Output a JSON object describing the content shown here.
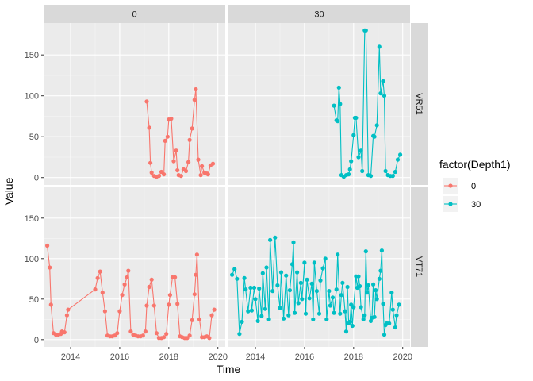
{
  "chart_data": {
    "type": "line",
    "facet_columns": [
      "0",
      "30"
    ],
    "facet_rows": [
      "VR51",
      "VT71"
    ],
    "xlabel": "Time",
    "ylabel": "Value",
    "x_ticks": [
      2014,
      2016,
      2018,
      2020
    ],
    "y_ticks": [
      0,
      50,
      100,
      150
    ],
    "xlim": [
      2012.9,
      2020.3
    ],
    "ylim": [
      -9,
      189
    ],
    "grid": true,
    "legend": {
      "title": "factor(Depth1)",
      "position": "right",
      "entries": [
        {
          "label": "0",
          "color": "#F8766D"
        },
        {
          "label": "30",
          "color": "#00BFC4"
        }
      ]
    },
    "panels": [
      {
        "row": "VR51",
        "col": "0",
        "series": "0",
        "color": "#F8766D",
        "points": [
          [
            2017.1,
            93
          ],
          [
            2017.2,
            61
          ],
          [
            2017.25,
            18
          ],
          [
            2017.3,
            6
          ],
          [
            2017.4,
            2
          ],
          [
            2017.5,
            1
          ],
          [
            2017.6,
            2
          ],
          [
            2017.7,
            7
          ],
          [
            2017.8,
            4
          ],
          [
            2017.85,
            45
          ],
          [
            2017.95,
            50
          ],
          [
            2018.0,
            71
          ],
          [
            2018.1,
            72
          ],
          [
            2018.2,
            20
          ],
          [
            2018.3,
            33
          ],
          [
            2018.35,
            9
          ],
          [
            2018.4,
            3
          ],
          [
            2018.5,
            2
          ],
          [
            2018.6,
            10
          ],
          [
            2018.7,
            8
          ],
          [
            2018.8,
            19
          ],
          [
            2018.85,
            46
          ],
          [
            2018.95,
            60
          ],
          [
            2019.05,
            95
          ],
          [
            2019.1,
            108
          ],
          [
            2019.2,
            22
          ],
          [
            2019.3,
            3
          ],
          [
            2019.35,
            14
          ],
          [
            2019.45,
            6
          ],
          [
            2019.55,
            5
          ],
          [
            2019.6,
            4
          ],
          [
            2019.7,
            15
          ],
          [
            2019.8,
            17
          ]
        ]
      },
      {
        "row": "VR51",
        "col": "30",
        "series": "30",
        "color": "#00BFC4",
        "points": [
          [
            2017.2,
            88
          ],
          [
            2017.3,
            70
          ],
          [
            2017.35,
            69
          ],
          [
            2017.4,
            110
          ],
          [
            2017.45,
            90
          ],
          [
            2017.5,
            3
          ],
          [
            2017.6,
            1
          ],
          [
            2017.7,
            3
          ],
          [
            2017.8,
            4
          ],
          [
            2017.85,
            10
          ],
          [
            2017.9,
            20
          ],
          [
            2018.0,
            52
          ],
          [
            2018.05,
            73
          ],
          [
            2018.1,
            73
          ],
          [
            2018.2,
            25
          ],
          [
            2018.3,
            33
          ],
          [
            2018.35,
            8
          ],
          [
            2018.45,
            180
          ],
          [
            2018.5,
            180
          ],
          [
            2018.6,
            3
          ],
          [
            2018.7,
            2
          ],
          [
            2018.8,
            51
          ],
          [
            2018.85,
            50
          ],
          [
            2018.95,
            64
          ],
          [
            2019.05,
            160
          ],
          [
            2019.1,
            103
          ],
          [
            2019.2,
            118
          ],
          [
            2019.25,
            100
          ],
          [
            2019.3,
            8
          ],
          [
            2019.4,
            3
          ],
          [
            2019.5,
            2
          ],
          [
            2019.6,
            2
          ],
          [
            2019.7,
            7
          ],
          [
            2019.8,
            22
          ],
          [
            2019.9,
            28
          ]
        ]
      },
      {
        "row": "VT71",
        "col": "0",
        "series": "0",
        "color": "#F8766D",
        "points": [
          [
            2013.05,
            116
          ],
          [
            2013.15,
            89
          ],
          [
            2013.2,
            43
          ],
          [
            2013.3,
            8
          ],
          [
            2013.4,
            6
          ],
          [
            2013.5,
            6
          ],
          [
            2013.6,
            7
          ],
          [
            2013.65,
            10
          ],
          [
            2013.75,
            9
          ],
          [
            2013.85,
            30
          ],
          [
            2013.9,
            37
          ],
          [
            2015.0,
            62
          ],
          [
            2015.1,
            76
          ],
          [
            2015.2,
            84
          ],
          [
            2015.3,
            58
          ],
          [
            2015.4,
            35
          ],
          [
            2015.5,
            5
          ],
          [
            2015.6,
            4
          ],
          [
            2015.7,
            4
          ],
          [
            2015.8,
            5
          ],
          [
            2015.9,
            8
          ],
          [
            2016.0,
            35
          ],
          [
            2016.1,
            55
          ],
          [
            2016.2,
            68
          ],
          [
            2016.3,
            77
          ],
          [
            2016.35,
            85
          ],
          [
            2016.45,
            10
          ],
          [
            2016.55,
            6
          ],
          [
            2016.65,
            5
          ],
          [
            2016.75,
            4
          ],
          [
            2016.85,
            4
          ],
          [
            2016.95,
            5
          ],
          [
            2017.05,
            10
          ],
          [
            2017.1,
            42
          ],
          [
            2017.2,
            65
          ],
          [
            2017.3,
            74
          ],
          [
            2017.4,
            42
          ],
          [
            2017.5,
            8
          ],
          [
            2017.6,
            2
          ],
          [
            2017.7,
            2
          ],
          [
            2017.8,
            3
          ],
          [
            2017.9,
            7
          ],
          [
            2018.0,
            43
          ],
          [
            2018.05,
            55
          ],
          [
            2018.15,
            77
          ],
          [
            2018.25,
            77
          ],
          [
            2018.35,
            44
          ],
          [
            2018.45,
            4
          ],
          [
            2018.55,
            3
          ],
          [
            2018.65,
            2
          ],
          [
            2018.75,
            2
          ],
          [
            2018.85,
            5
          ],
          [
            2018.95,
            24
          ],
          [
            2019.05,
            56
          ],
          [
            2019.1,
            80
          ],
          [
            2019.15,
            105
          ],
          [
            2019.25,
            25
          ],
          [
            2019.35,
            3
          ],
          [
            2019.45,
            3
          ],
          [
            2019.55,
            4
          ],
          [
            2019.65,
            2
          ],
          [
            2019.75,
            30
          ],
          [
            2019.85,
            37
          ]
        ]
      },
      {
        "row": "VT71",
        "col": "30",
        "series": "30",
        "color": "#00BFC4",
        "points": [
          [
            2013.05,
            80
          ],
          [
            2013.15,
            87
          ],
          [
            2013.25,
            75
          ],
          [
            2013.35,
            7
          ],
          [
            2013.45,
            22
          ],
          [
            2013.55,
            76
          ],
          [
            2013.6,
            62
          ],
          [
            2013.7,
            35
          ],
          [
            2013.8,
            64
          ],
          [
            2013.85,
            36
          ],
          [
            2013.95,
            64
          ],
          [
            2014.0,
            50
          ],
          [
            2014.1,
            23
          ],
          [
            2014.15,
            63
          ],
          [
            2014.25,
            29
          ],
          [
            2014.3,
            82
          ],
          [
            2014.4,
            38
          ],
          [
            2014.45,
            89
          ],
          [
            2014.55,
            25
          ],
          [
            2014.6,
            123
          ],
          [
            2014.7,
            60
          ],
          [
            2014.8,
            126
          ],
          [
            2014.9,
            67
          ],
          [
            2015.0,
            39
          ],
          [
            2015.05,
            83
          ],
          [
            2015.15,
            26
          ],
          [
            2015.25,
            79
          ],
          [
            2015.35,
            30
          ],
          [
            2015.4,
            61
          ],
          [
            2015.5,
            93
          ],
          [
            2015.55,
            120
          ],
          [
            2015.6,
            33
          ],
          [
            2015.7,
            83
          ],
          [
            2015.75,
            45
          ],
          [
            2015.85,
            70
          ],
          [
            2015.9,
            50
          ],
          [
            2016.0,
            95
          ],
          [
            2016.05,
            32
          ],
          [
            2016.1,
            74
          ],
          [
            2016.2,
            51
          ],
          [
            2016.3,
            69
          ],
          [
            2016.35,
            25
          ],
          [
            2016.4,
            95
          ],
          [
            2016.5,
            60
          ],
          [
            2016.6,
            32
          ],
          [
            2016.65,
            73
          ],
          [
            2016.75,
            88
          ],
          [
            2016.85,
            100
          ],
          [
            2016.9,
            25
          ],
          [
            2017.0,
            60
          ],
          [
            2017.05,
            42
          ],
          [
            2017.15,
            52
          ],
          [
            2017.2,
            33
          ],
          [
            2017.3,
            62
          ],
          [
            2017.35,
            105
          ],
          [
            2017.45,
            32
          ],
          [
            2017.5,
            55
          ],
          [
            2017.55,
            70
          ],
          [
            2017.65,
            35
          ],
          [
            2017.7,
            10
          ],
          [
            2017.75,
            65
          ],
          [
            2017.8,
            20
          ],
          [
            2017.85,
            22
          ],
          [
            2017.9,
            43
          ],
          [
            2017.95,
            17
          ],
          [
            2018.0,
            40
          ],
          [
            2018.1,
            78
          ],
          [
            2018.15,
            64
          ],
          [
            2018.2,
            78
          ],
          [
            2018.25,
            66
          ],
          [
            2018.3,
            40
          ],
          [
            2018.4,
            25
          ],
          [
            2018.45,
            30
          ],
          [
            2018.5,
            109
          ],
          [
            2018.55,
            58
          ],
          [
            2018.6,
            67
          ],
          [
            2018.7,
            23
          ],
          [
            2018.75,
            27
          ],
          [
            2018.8,
            68
          ],
          [
            2018.85,
            28
          ],
          [
            2018.9,
            61
          ],
          [
            2018.95,
            50
          ],
          [
            2019.05,
            75
          ],
          [
            2019.1,
            85
          ],
          [
            2019.15,
            110
          ],
          [
            2019.2,
            44
          ],
          [
            2019.25,
            6
          ],
          [
            2019.3,
            18
          ],
          [
            2019.35,
            20
          ],
          [
            2019.45,
            20
          ],
          [
            2019.55,
            58
          ],
          [
            2019.6,
            37
          ],
          [
            2019.7,
            15
          ],
          [
            2019.75,
            30
          ],
          [
            2019.85,
            43
          ]
        ]
      }
    ]
  }
}
